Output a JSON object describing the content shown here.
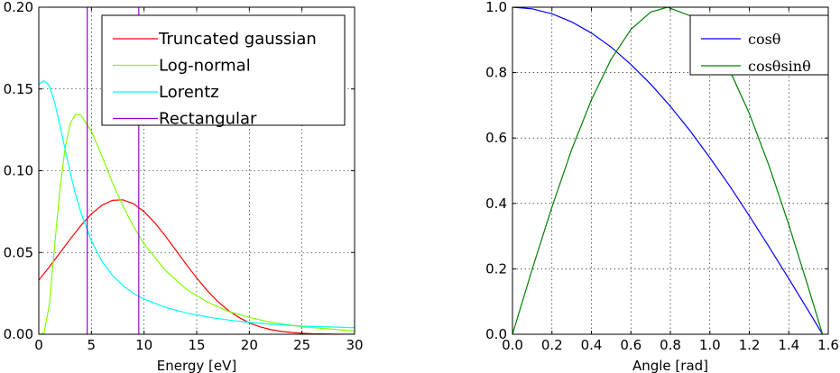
{
  "chart_data": [
    {
      "type": "line",
      "xlabel": "Energy [eV]",
      "ylabel": "",
      "xlim": [
        0,
        30
      ],
      "ylim": [
        0,
        0.2
      ],
      "xticks": [
        "0",
        "5",
        "10",
        "15",
        "20",
        "25",
        "30"
      ],
      "yticks": [
        "0.00",
        "0.05",
        "0.10",
        "0.15",
        "0.20"
      ],
      "grid": true,
      "legend_position": "top-right",
      "series": [
        {
          "name": "Truncated gaussian",
          "color": "#ff0000",
          "x": [
            0,
            1,
            2,
            3,
            4,
            5,
            6,
            7,
            8,
            9,
            10,
            11,
            12,
            13,
            14,
            15,
            16,
            17,
            18,
            19,
            20,
            21,
            22,
            23,
            24,
            25,
            26,
            27,
            28,
            29,
            30
          ],
          "y": [
            0.0331,
            0.0412,
            0.0497,
            0.0583,
            0.0665,
            0.0736,
            0.0789,
            0.0819,
            0.0822,
            0.0798,
            0.075,
            0.0683,
            0.0603,
            0.0516,
            0.0428,
            0.0344,
            0.0267,
            0.0201,
            0.0146,
            0.0103,
            0.007,
            0.0046,
            0.0029,
            0.0018,
            0.0011,
            0.0006,
            0.0003,
            0.0002,
            0.0001,
            0.0,
            0.0
          ]
        },
        {
          "name": "Log-normal",
          "color": "#80ff00",
          "x": [
            0.1,
            0.5,
            1,
            1.5,
            2,
            2.5,
            3,
            3.5,
            4,
            5,
            6,
            7,
            8,
            9,
            10,
            12,
            14,
            16,
            18,
            20,
            22,
            25,
            30
          ],
          "y": [
            0.0,
            0.0008,
            0.018,
            0.054,
            0.088,
            0.114,
            0.129,
            0.1346,
            0.134,
            0.124,
            0.109,
            0.0927,
            0.0783,
            0.0659,
            0.0552,
            0.0392,
            0.0276,
            0.0197,
            0.014,
            0.0103,
            0.0074,
            0.0046,
            0.002
          ]
        },
        {
          "name": "Lorentz",
          "color": "#00ffff",
          "x": [
            0,
            0.5,
            1,
            1.5,
            2,
            2.5,
            3,
            3.5,
            4,
            5,
            6,
            7,
            8,
            9,
            10,
            12,
            14,
            16,
            18,
            20,
            22,
            25,
            30
          ],
          "y": [
            0.153,
            0.155,
            0.152,
            0.142,
            0.128,
            0.113,
            0.0985,
            0.0855,
            0.0744,
            0.057,
            0.0447,
            0.036,
            0.0297,
            0.025,
            0.0215,
            0.0165,
            0.0131,
            0.0106,
            0.0087,
            0.0073,
            0.0062,
            0.005,
            0.004
          ]
        },
        {
          "name": "Rectangular",
          "color": "#9900cc",
          "x": [
            4.6,
            4.6,
            9.5,
            9.5
          ],
          "y": [
            0.2,
            0.0,
            0.0,
            0.2
          ]
        }
      ]
    },
    {
      "type": "line",
      "xlabel": "Angle [rad]",
      "ylabel": "",
      "xlim": [
        0,
        1.6
      ],
      "ylim": [
        0,
        1.0
      ],
      "xticks": [
        "0.0",
        "0.2",
        "0.4",
        "0.6",
        "0.8",
        "1.0",
        "1.2",
        "1.4",
        "1.6"
      ],
      "yticks": [
        "0.0",
        "0.2",
        "0.4",
        "0.6",
        "0.8",
        "1.0"
      ],
      "grid": true,
      "legend_position": "top-right",
      "series": [
        {
          "name": "cosθ",
          "color": "#0000ff",
          "x": [
            0,
            0.1,
            0.2,
            0.3,
            0.4,
            0.5,
            0.6,
            0.7,
            0.8,
            0.9,
            1.0,
            1.1,
            1.2,
            1.3,
            1.4,
            1.5,
            1.5708
          ],
          "y": [
            1.0,
            0.995,
            0.98,
            0.955,
            0.921,
            0.878,
            0.825,
            0.765,
            0.697,
            0.622,
            0.54,
            0.454,
            0.362,
            0.267,
            0.17,
            0.071,
            0.0
          ]
        },
        {
          "name": "cosθsinθ",
          "color": "#008000",
          "x": [
            0,
            0.1,
            0.2,
            0.3,
            0.4,
            0.5,
            0.6,
            0.7,
            0.785,
            0.9,
            1.0,
            1.1,
            1.2,
            1.3,
            1.4,
            1.5,
            1.5708
          ],
          "y": [
            0.0,
            0.199,
            0.389,
            0.565,
            0.717,
            0.841,
            0.932,
            0.985,
            1.0,
            0.974,
            0.909,
            0.808,
            0.675,
            0.515,
            0.335,
            0.141,
            0.0
          ]
        }
      ]
    }
  ]
}
